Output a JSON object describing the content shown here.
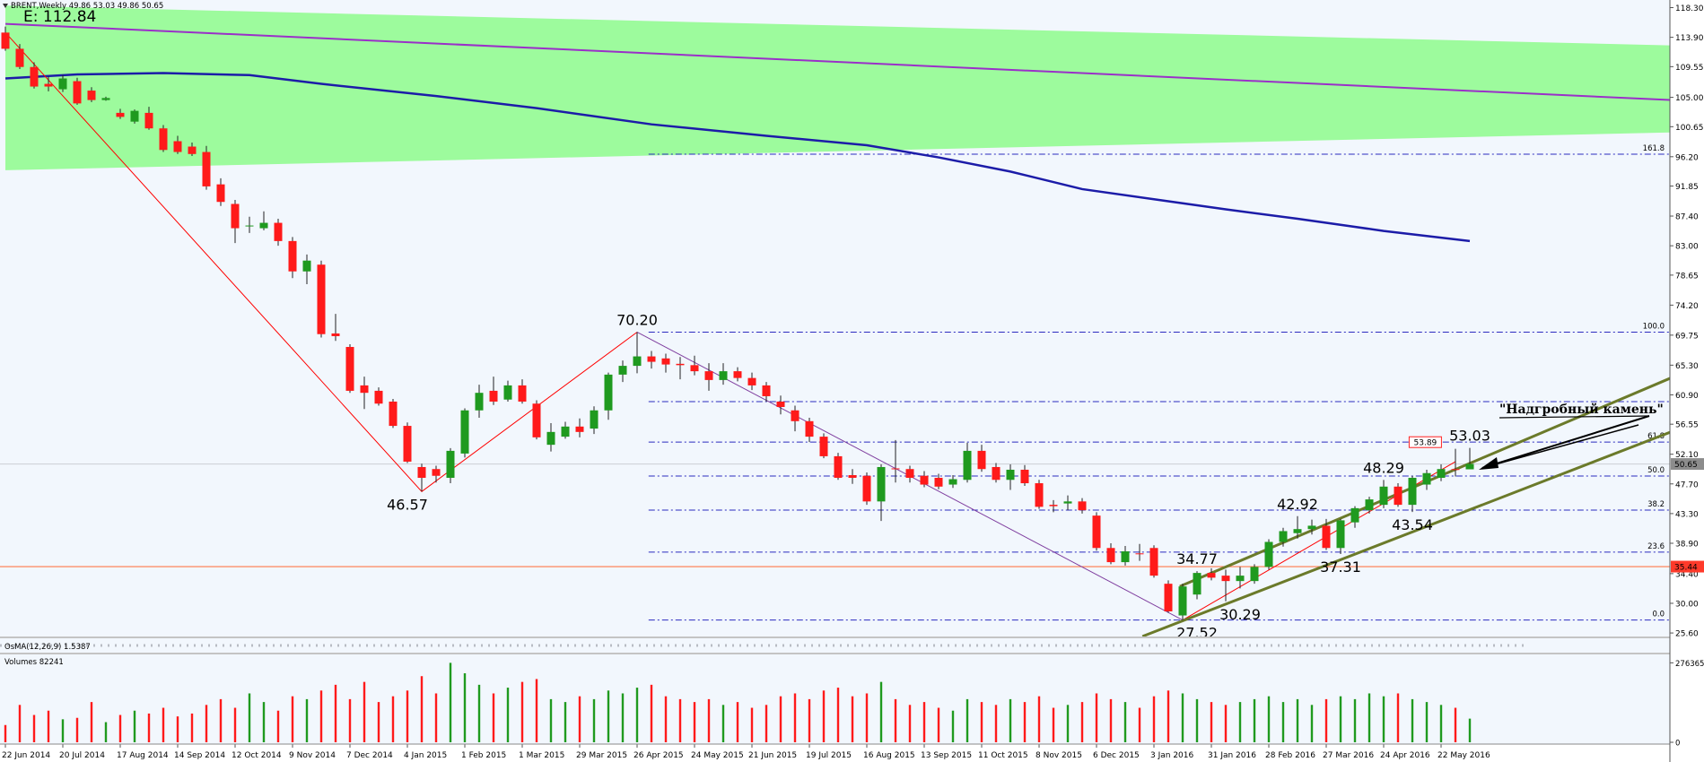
{
  "header": {
    "symbol": "BRENT,Weekly",
    "equity": "E: 112.84"
  },
  "note": "\"Надгробный камень\"",
  "chart_data": [
    {
      "type": "candlestick",
      "categories": [
        "22 Jun 2014",
        null,
        null,
        null,
        "20 Jul 2014",
        null,
        null,
        null,
        "17 Aug 2014",
        null,
        null,
        null,
        "14 Sep 2014",
        null,
        null,
        null,
        "12 Oct 2014",
        null,
        null,
        null,
        "9 Nov 2014",
        null,
        null,
        null,
        "7 Dec 2014",
        null,
        null,
        null,
        "4 Jan 2015",
        null,
        null,
        null,
        "1 Feb 2015",
        null,
        null,
        null,
        "1 Mar 2015",
        null,
        null,
        null,
        "29 Mar 2015",
        null,
        null,
        null,
        "26 Apr 2015",
        null,
        null,
        null,
        "24 May 2015",
        null,
        null,
        null,
        "21 Jun 2015",
        null,
        null,
        null,
        "19 Jul 2015",
        null,
        null,
        null,
        "16 Aug 2015",
        null,
        null,
        null,
        "13 Sep 2015",
        null,
        null,
        null,
        "11 Oct 2015",
        null,
        null,
        null,
        "8 Nov 2015",
        null,
        null,
        null,
        "6 Dec 2015",
        null,
        null,
        null,
        "3 Jan 2016",
        null,
        null,
        null,
        "31 Jan 2016",
        null,
        null,
        null,
        "28 Feb 2016",
        null,
        null,
        null,
        "27 Mar 2016",
        null,
        null,
        null,
        "24 Apr 2016",
        null,
        null,
        null,
        "22 May 2016",
        null,
        null
      ],
      "candles": [
        [
          114.6,
          115.5,
          111.9,
          112.2
        ],
        [
          112.2,
          112.9,
          109.2,
          109.5
        ],
        [
          109.5,
          110.2,
          106.3,
          106.6
        ],
        [
          107.0,
          108.1,
          105.9,
          106.6
        ],
        [
          106.2,
          108.3,
          105.8,
          107.8
        ],
        [
          107.4,
          107.9,
          103.9,
          104.1
        ],
        [
          106.0,
          106.5,
          104.3,
          104.6
        ],
        [
          104.6,
          105.1,
          104.5,
          104.9
        ],
        [
          102.7,
          103.3,
          101.8,
          102.1
        ],
        [
          101.4,
          103.2,
          101.1,
          103.0
        ],
        [
          102.7,
          103.6,
          100.2,
          100.4
        ],
        [
          100.4,
          100.9,
          96.9,
          97.2
        ],
        [
          98.5,
          99.3,
          96.6,
          96.9
        ],
        [
          97.7,
          98.3,
          96.3,
          96.6
        ],
        [
          96.9,
          97.8,
          91.3,
          91.8
        ],
        [
          92.1,
          93.0,
          88.9,
          89.5
        ],
        [
          89.2,
          89.8,
          83.4,
          85.6
        ],
        [
          85.9,
          87.3,
          84.9,
          86.0
        ],
        [
          85.6,
          88.1,
          85.3,
          86.4
        ],
        [
          86.4,
          87.0,
          83.0,
          83.7
        ],
        [
          83.7,
          84.3,
          78.2,
          79.2
        ],
        [
          79.2,
          81.7,
          77.3,
          80.8
        ],
        [
          80.2,
          80.8,
          69.4,
          69.9
        ],
        [
          70.0,
          72.9,
          68.9,
          69.6
        ],
        [
          68.0,
          68.4,
          61.2,
          61.5
        ],
        [
          62.3,
          63.6,
          58.8,
          61.2
        ],
        [
          61.5,
          62.0,
          59.3,
          59.6
        ],
        [
          59.9,
          60.3,
          56.0,
          56.3
        ],
        [
          56.3,
          56.8,
          50.8,
          51.0
        ],
        [
          50.2,
          50.7,
          46.57,
          48.6
        ],
        [
          49.9,
          50.4,
          47.9,
          48.9
        ],
        [
          48.6,
          53.0,
          47.8,
          52.6
        ],
        [
          52.2,
          58.9,
          51.6,
          58.6
        ],
        [
          58.6,
          62.4,
          57.5,
          61.2
        ],
        [
          61.5,
          63.6,
          59.4,
          59.9
        ],
        [
          60.2,
          63.0,
          59.9,
          62.3
        ],
        [
          62.3,
          63.2,
          59.6,
          59.9
        ],
        [
          59.6,
          60.1,
          54.3,
          54.6
        ],
        [
          53.5,
          56.7,
          52.5,
          55.4
        ],
        [
          54.7,
          56.9,
          54.4,
          56.2
        ],
        [
          56.2,
          57.4,
          54.6,
          55.4
        ],
        [
          55.9,
          59.2,
          55.1,
          58.6
        ],
        [
          58.6,
          64.2,
          57.2,
          63.9
        ],
        [
          63.9,
          66.0,
          62.8,
          65.2
        ],
        [
          65.2,
          70.2,
          64.1,
          66.6
        ],
        [
          66.6,
          67.4,
          64.8,
          65.8
        ],
        [
          66.3,
          67.0,
          64.2,
          65.4
        ],
        [
          65.5,
          66.5,
          63.2,
          65.3
        ],
        [
          65.3,
          66.7,
          63.8,
          64.4
        ],
        [
          64.4,
          65.6,
          61.5,
          63.1
        ],
        [
          63.1,
          65.6,
          62.4,
          64.4
        ],
        [
          64.4,
          65.0,
          62.9,
          63.4
        ],
        [
          63.4,
          64.2,
          61.6,
          62.3
        ],
        [
          62.3,
          62.8,
          59.9,
          60.7
        ],
        [
          59.9,
          60.8,
          58.0,
          59.1
        ],
        [
          58.6,
          59.3,
          55.5,
          57.0
        ],
        [
          57.0,
          57.5,
          53.9,
          54.7
        ],
        [
          54.7,
          55.2,
          51.5,
          51.8
        ],
        [
          51.8,
          52.3,
          48.3,
          48.6
        ],
        [
          49.0,
          49.9,
          47.7,
          48.6
        ],
        [
          48.9,
          49.4,
          44.6,
          45.1
        ],
        [
          45.1,
          50.6,
          42.2,
          50.2
        ],
        [
          50.0,
          54.2,
          47.9,
          49.9
        ],
        [
          49.9,
          50.4,
          47.9,
          48.6
        ],
        [
          48.9,
          49.6,
          47.2,
          47.6
        ],
        [
          48.6,
          49.2,
          46.9,
          47.3
        ],
        [
          47.6,
          49.0,
          47.1,
          48.4
        ],
        [
          48.3,
          53.8,
          47.9,
          52.6
        ],
        [
          52.6,
          53.5,
          49.5,
          49.9
        ],
        [
          50.2,
          50.8,
          47.9,
          48.3
        ],
        [
          48.3,
          50.6,
          46.8,
          49.8
        ],
        [
          49.8,
          50.5,
          47.4,
          47.8
        ],
        [
          47.8,
          48.3,
          44.0,
          44.3
        ],
        [
          44.6,
          45.3,
          43.5,
          44.4
        ],
        [
          44.8,
          46.0,
          43.8,
          45.1
        ],
        [
          45.1,
          45.6,
          43.3,
          43.8
        ],
        [
          43.0,
          43.5,
          37.8,
          38.2
        ],
        [
          38.2,
          38.9,
          35.8,
          36.1
        ],
        [
          36.1,
          38.5,
          35.6,
          37.7
        ],
        [
          37.4,
          38.8,
          36.3,
          37.3
        ],
        [
          38.2,
          38.6,
          33.8,
          34.1
        ],
        [
          32.9,
          33.4,
          28.6,
          28.8
        ],
        [
          28.2,
          32.9,
          27.52,
          32.5
        ],
        [
          31.3,
          34.77,
          30.6,
          34.5
        ],
        [
          34.5,
          35.2,
          33.4,
          33.8
        ],
        [
          34.1,
          35.0,
          30.29,
          33.3
        ],
        [
          33.3,
          35.4,
          32.2,
          34.1
        ],
        [
          33.3,
          35.8,
          32.9,
          35.4
        ],
        [
          35.4,
          39.5,
          35.0,
          39.1
        ],
        [
          39.1,
          41.2,
          38.4,
          40.7
        ],
        [
          40.4,
          42.92,
          39.6,
          41.0
        ],
        [
          41.0,
          42.4,
          40.2,
          41.5
        ],
        [
          41.5,
          42.5,
          37.9,
          38.2
        ],
        [
          38.2,
          42.5,
          37.31,
          42.3
        ],
        [
          42.0,
          44.4,
          41.2,
          44.1
        ],
        [
          43.8,
          45.8,
          43.3,
          45.4
        ],
        [
          44.6,
          48.29,
          44.1,
          47.3
        ],
        [
          47.3,
          47.8,
          44.3,
          44.6
        ],
        [
          44.6,
          48.9,
          43.54,
          48.6
        ],
        [
          47.6,
          49.8,
          46.8,
          49.3
        ],
        [
          48.6,
          50.6,
          48.1,
          49.9
        ],
        [
          49.9,
          52.9,
          48.8,
          49.8
        ],
        [
          49.86,
          53.03,
          49.86,
          50.65
        ]
      ],
      "up_color": "#1f9a1f",
      "down_color": "#ff1a1a",
      "wick_color": "#222222",
      "background": "#f2f7fd",
      "ylim": [
        25.08,
        119.43
      ],
      "yticks": [
        {
          "value": 118.3,
          "label": "118.30"
        },
        {
          "value": 113.9,
          "label": "113.90"
        },
        {
          "value": 109.55,
          "label": "109.55"
        },
        {
          "value": 105,
          "label": "105.00"
        },
        {
          "value": 100.65,
          "label": "100.65"
        },
        {
          "value": 96.2,
          "label": "96.20"
        },
        {
          "value": 91.85,
          "label": "91.85"
        },
        {
          "value": 87.4,
          "label": "87.40"
        },
        {
          "value": 83,
          "label": "83.00"
        },
        {
          "value": 78.65,
          "label": "78.65"
        },
        {
          "value": 74.2,
          "label": "74.20"
        },
        {
          "value": 69.75,
          "label": "69.75"
        },
        {
          "value": 65.3,
          "label": "65.30"
        },
        {
          "value": 60.9,
          "label": "60.90"
        },
        {
          "value": 56.55,
          "label": "56.55"
        },
        {
          "value": 52.1,
          "label": "52.10"
        },
        {
          "value": 47.7,
          "label": "47.70"
        },
        {
          "value": 43.3,
          "label": "43.30"
        },
        {
          "value": 38.9,
          "label": "38.90"
        },
        {
          "value": 34.4,
          "label": "34.40"
        },
        {
          "value": 30,
          "label": "30.00"
        },
        {
          "value": 25.6,
          "label": "25.60"
        }
      ],
      "band": {
        "color": "#9dfb9d",
        "x": [
          0,
          116
        ],
        "upper": [
          118.6,
          112.7
        ],
        "lower": [
          94.2,
          99.8
        ]
      },
      "overlays": [
        {
          "color": "#9a30c8",
          "width": 2,
          "x": [
            0,
            116
          ],
          "values": [
            115.9,
            104.6
          ]
        },
        {
          "color": "#1c1ca8",
          "width": 2.5,
          "x": [
            0,
            5,
            11,
            17,
            22,
            30,
            37,
            45,
            53,
            60,
            65,
            70,
            75,
            80,
            85,
            90,
            96,
            102
          ],
          "values": [
            107.8,
            108.4,
            108.6,
            108.3,
            107.0,
            105.2,
            103.4,
            101.0,
            99.3,
            97.9,
            96.1,
            94.0,
            91.4,
            89.9,
            88.4,
            87.0,
            85.2,
            83.7
          ]
        },
        {
          "color": "#ff0000",
          "width": 1,
          "x": [
            0,
            29,
            44
          ],
          "values": [
            114.6,
            46.57,
            70.2
          ]
        },
        {
          "color": "#8040a0",
          "width": 1,
          "x": [
            44,
            82
          ],
          "values": [
            70.2,
            27.52
          ]
        },
        {
          "color": "#ff0000",
          "width": 1,
          "x": [
            82,
            101
          ],
          "values": [
            27.52,
            51.0
          ]
        },
        {
          "color": "#6b7a2a",
          "width": 3,
          "x": [
            81.8,
            116
          ],
          "values": [
            32.5,
            63.4
          ]
        },
        {
          "color": "#6b7a2a",
          "width": 3,
          "x": [
            79.2,
            116
          ],
          "values": [
            25.1,
            55.4
          ]
        }
      ],
      "fib": {
        "color": "#2b2bc0",
        "x": [
          44.8,
          116
        ],
        "levels": [
          {
            "value": 96.58,
            "label": "161.8"
          },
          {
            "value": 70.2,
            "label": "100.0"
          },
          {
            "value": 59.9
          },
          {
            "value": 53.9,
            "label": "61.8"
          },
          {
            "value": 48.86,
            "label": "50.0"
          },
          {
            "value": 43.82,
            "label": "38.2"
          },
          {
            "value": 37.59,
            "label": "23.6"
          },
          {
            "value": 27.52,
            "label": "0.0"
          }
        ]
      },
      "hlines": [
        {
          "value": 35.44,
          "label": "35.44",
          "color": "#ff7a4a",
          "tag": "#ff3a2a"
        },
        {
          "value": 50.65,
          "label": "50.65",
          "color": "#d0d4da",
          "tag": "#8c8c8c"
        }
      ],
      "price_marks": [
        {
          "value": 53.89,
          "label": "53.89",
          "x": 98.9,
          "color": "#ff2020"
        }
      ],
      "annotations": [
        {
          "value": 70.2,
          "label": "70.20",
          "x": 44,
          "pos": "above"
        },
        {
          "value": 46.57,
          "label": "46.57",
          "x": 28,
          "pos": "below"
        },
        {
          "value": 34.77,
          "label": "34.77",
          "x": 83,
          "pos": "above"
        },
        {
          "value": 27.52,
          "label": "27.52",
          "x": 83,
          "pos": "below"
        },
        {
          "value": 30.29,
          "label": "30.29",
          "x": 86,
          "pos": "below"
        },
        {
          "value": 42.92,
          "label": "42.92",
          "x": 90,
          "pos": "above"
        },
        {
          "value": 37.31,
          "label": "37.31",
          "x": 93,
          "pos": "below"
        },
        {
          "value": 48.29,
          "label": "48.29",
          "x": 96,
          "pos": "above"
        },
        {
          "value": 43.54,
          "label": "43.54",
          "x": 98,
          "pos": "below"
        },
        {
          "value": 53.03,
          "label": "53.03",
          "x": 102,
          "pos": "above"
        }
      ]
    },
    {
      "type": "osma",
      "title": "OsMA(12,26,9) 1.5387"
    },
    {
      "type": "volume",
      "title": "Volumes",
      "values": [
        60000,
        130000,
        95000,
        110000,
        80000,
        85000,
        140000,
        70000,
        95000,
        110000,
        100000,
        120000,
        90000,
        100000,
        130000,
        150000,
        120000,
        170000,
        140000,
        110000,
        160000,
        150000,
        180000,
        200000,
        150000,
        210000,
        140000,
        160000,
        180000,
        230000,
        170000,
        276365,
        240000,
        200000,
        170000,
        190000,
        210000,
        220000,
        150000,
        140000,
        160000,
        150000,
        180000,
        170000,
        190000,
        200000,
        160000,
        150000,
        140000,
        150000,
        130000,
        140000,
        120000,
        130000,
        160000,
        170000,
        150000,
        180000,
        190000,
        160000,
        170000,
        210000,
        150000,
        130000,
        140000,
        120000,
        110000,
        150000,
        140000,
        130000,
        150000,
        140000,
        160000,
        120000,
        130000,
        140000,
        170000,
        150000,
        140000,
        120000,
        160000,
        180000,
        170000,
        150000,
        140000,
        130000,
        140000,
        150000,
        160000,
        140000,
        150000,
        130000,
        150000,
        160000,
        150000,
        170000,
        160000,
        170000,
        150000,
        140000,
        130000,
        120000,
        82241
      ],
      "ylim": [
        0,
        290000
      ],
      "yticks": [
        0,
        276365
      ]
    }
  ]
}
